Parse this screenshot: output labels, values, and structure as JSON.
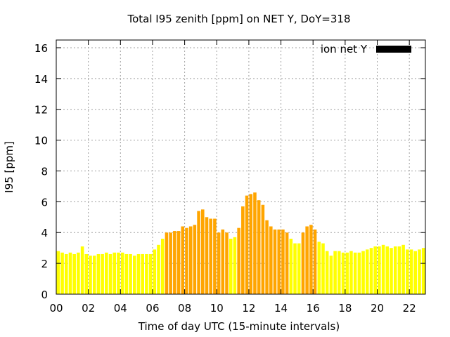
{
  "chart_data": {
    "type": "bar",
    "title": "Total I95 zenith [ppm] on NET Y, DoY=318",
    "xlabel": "Time of day UTC (15-minute intervals)",
    "ylabel": "I95 [ppm]",
    "ylim": [
      0,
      16.5
    ],
    "xlim": [
      0,
      23
    ],
    "xticks": [
      "00",
      "02",
      "04",
      "06",
      "08",
      "10",
      "12",
      "14",
      "16",
      "18",
      "20",
      "22"
    ],
    "yticks": [
      "0",
      "2",
      "4",
      "6",
      "8",
      "10",
      "12",
      "14",
      "16"
    ],
    "grid": true,
    "legend": {
      "label": "ion net Y",
      "position": "top-right",
      "color": "#000000"
    },
    "colors": {
      "low": "#ffff00",
      "high": "#ffa500",
      "threshold": 4.0
    },
    "bin_hours": 0.25,
    "values": [
      2.8,
      2.7,
      2.6,
      2.7,
      2.6,
      2.7,
      3.1,
      2.6,
      2.5,
      2.5,
      2.6,
      2.6,
      2.7,
      2.6,
      2.7,
      2.7,
      2.7,
      2.6,
      2.6,
      2.5,
      2.6,
      2.6,
      2.6,
      2.6,
      2.9,
      3.2,
      3.6,
      4.0,
      4.0,
      4.1,
      4.1,
      4.4,
      4.3,
      4.4,
      4.5,
      5.4,
      5.5,
      5.0,
      4.9,
      4.9,
      4.0,
      4.2,
      4.0,
      3.6,
      3.7,
      4.3,
      5.7,
      6.4,
      6.5,
      6.6,
      6.1,
      5.8,
      4.8,
      4.4,
      4.2,
      4.2,
      4.2,
      4.0,
      3.6,
      3.3,
      3.3,
      4.0,
      4.4,
      4.5,
      4.2,
      3.4,
      3.3,
      2.8,
      2.5,
      2.8,
      2.8,
      2.7,
      2.7,
      2.8,
      2.7,
      2.7,
      2.8,
      2.9,
      3.0,
      3.1,
      3.1,
      3.2,
      3.1,
      3.0,
      3.1,
      3.1,
      3.2,
      2.9,
      2.9,
      2.8,
      2.9,
      3.0
    ]
  }
}
